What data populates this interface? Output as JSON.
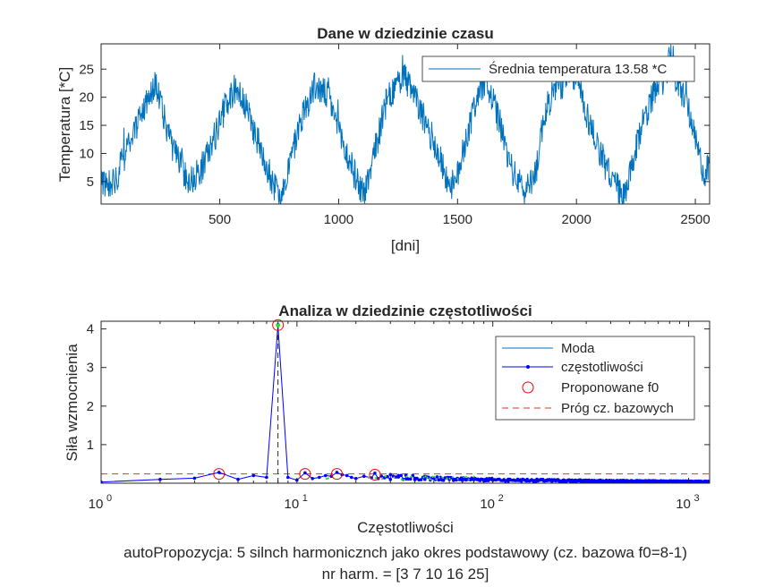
{
  "chart_data": [
    {
      "type": "line",
      "title": "Dane w dziedzinie czasu",
      "xlabel": "[dni]",
      "ylabel": "Temperatura [*C]",
      "xlim": [
        1,
        2560
      ],
      "ylim": [
        1,
        29.5
      ],
      "xticks": [
        500,
        1000,
        1500,
        2000,
        2500
      ],
      "yticks": [
        5,
        10,
        15,
        20,
        25
      ],
      "legend": {
        "position": "top-right",
        "entries": [
          "Średnia temperatura 13.58 *C"
        ]
      },
      "series_color": "#0072BD",
      "series": [
        {
          "name": "Średnia temperatura 13.58 *C",
          "mean": 13.58,
          "period_days": 365,
          "x": [
            1,
            60,
            120,
            180,
            230,
            250,
            300,
            370,
            420,
            470,
            530,
            570,
            620,
            670,
            730,
            760,
            800,
            840,
            900,
            960,
            1000,
            1040,
            1090,
            1110,
            1150,
            1200,
            1270,
            1320,
            1400,
            1460,
            1490,
            1520,
            1580,
            1620,
            1680,
            1720,
            1780,
            1830,
            1860,
            1900,
            1960,
            2000,
            2050,
            2130,
            2200,
            2220,
            2280,
            2340,
            2380,
            2400,
            2420,
            2460,
            2500,
            2540,
            2560
          ],
          "y": [
            5,
            5,
            12,
            18,
            23,
            19,
            11,
            5,
            7,
            12,
            19,
            22,
            17,
            11,
            4,
            3,
            9,
            16,
            22,
            20,
            14,
            9,
            4,
            3,
            10,
            19,
            24,
            20,
            12,
            5,
            4,
            10,
            20,
            23,
            15,
            8,
            3,
            7,
            16,
            21,
            23,
            24,
            16,
            7,
            2,
            5,
            16,
            22,
            24,
            29,
            22,
            20,
            12,
            6,
            8
          ]
        }
      ]
    },
    {
      "type": "line",
      "title": "Analiza w dziedzinie częstotliwości",
      "xlabel": "Częstotliwości",
      "ylabel": "Siła wzmocnienia",
      "xscale": "log",
      "xlim": [
        1,
        1280
      ],
      "ylim": [
        0,
        4.2
      ],
      "xticks": [
        1,
        10,
        100,
        1000
      ],
      "xtick_labels": [
        {
          "base": "10",
          "exp": "0"
        },
        {
          "base": "10",
          "exp": "1"
        },
        {
          "base": "10",
          "exp": "2"
        },
        {
          "base": "10",
          "exp": "3"
        }
      ],
      "yticks": [
        1,
        2,
        3,
        4
      ],
      "threshold": 0.24,
      "peak_marker": {
        "x": 8,
        "y": 4.1
      },
      "legend": {
        "position": "top-right",
        "entries": [
          "Moda",
          "częstotliwości",
          "Proponowane f0",
          "Próg cz. bazowych"
        ]
      },
      "colors": {
        "moda": "#0072BD",
        "freq": "#0000FF",
        "proposed": "#FF0000",
        "threshold": "#E03030",
        "highlight": "#33DD33"
      },
      "series": [
        {
          "name": "częstotliwości",
          "x": [
            1,
            2,
            3,
            4,
            5,
            6,
            7,
            8,
            9,
            10,
            11,
            12,
            13,
            14,
            15,
            16,
            17,
            18,
            19,
            20,
            22,
            24,
            25,
            26,
            28,
            30,
            33,
            36,
            40,
            45,
            50,
            55,
            60,
            70,
            80,
            90,
            100,
            120,
            150,
            200,
            300,
            500,
            800,
            1280
          ],
          "y": [
            0.03,
            0.1,
            0.13,
            0.28,
            0.1,
            0.2,
            0.15,
            4.1,
            0.15,
            0.08,
            0.27,
            0.12,
            0.15,
            0.2,
            0.18,
            0.28,
            0.22,
            0.2,
            0.15,
            0.12,
            0.18,
            0.14,
            0.26,
            0.12,
            0.15,
            0.1,
            0.16,
            0.11,
            0.13,
            0.1,
            0.12,
            0.08,
            0.1,
            0.07,
            0.09,
            0.06,
            0.08,
            0.05,
            0.06,
            0.05,
            0.04,
            0.04,
            0.03,
            0.03
          ]
        },
        {
          "name": "Proponowane f0",
          "x": [
            4,
            8,
            11,
            16,
            25
          ],
          "y": [
            0.24,
            4.1,
            0.24,
            0.24,
            0.22
          ]
        }
      ]
    }
  ],
  "captions": {
    "line1": "autoPropozycja: 5 silnch harmonicznch jako okres podstawowy (cz. bazowa f0=8-1)",
    "line2": "nr harm. = [3 7 10 16 25]"
  }
}
